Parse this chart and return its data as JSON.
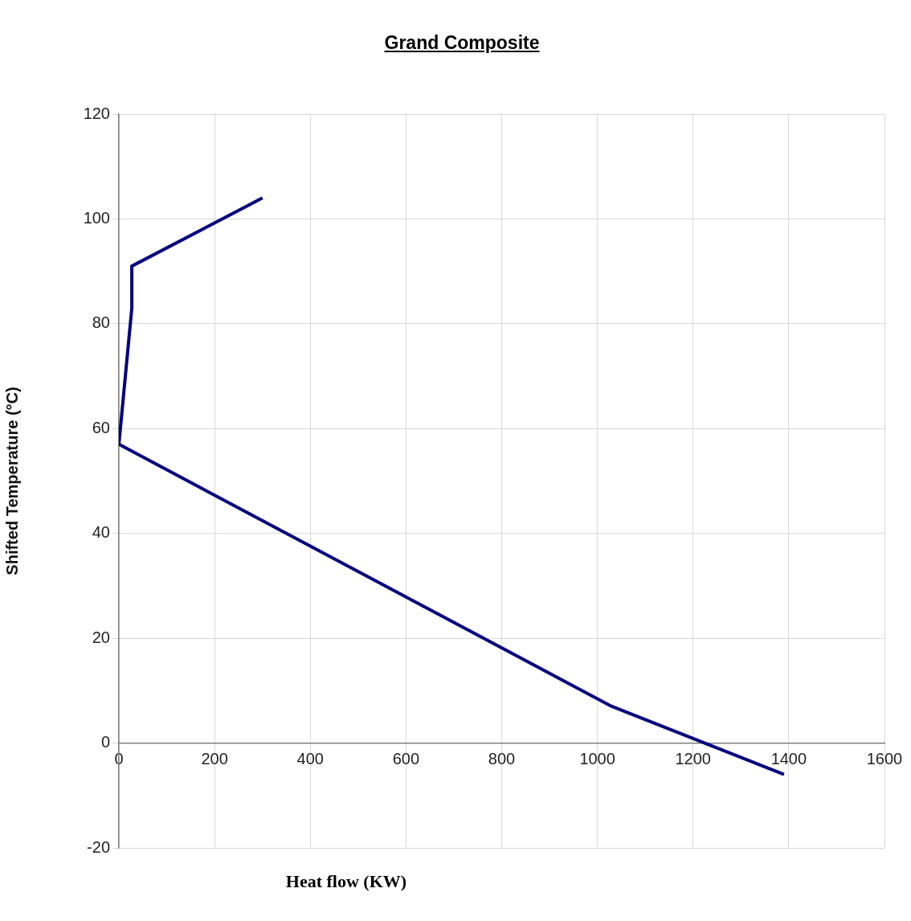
{
  "chart_data": {
    "type": "line",
    "title": "Grand Composite",
    "xlabel": "Heat flow (KW)",
    "ylabel": "Shifted Temperature (°C)",
    "x": [
      300,
      27,
      27,
      0,
      1030,
      1390
    ],
    "series": [
      {
        "color": "#000080",
        "values": [
          104,
          91,
          83,
          57,
          7,
          -6
        ]
      }
    ],
    "xlim": [
      0,
      1600
    ],
    "xticks": [
      0,
      200,
      400,
      600,
      800,
      1000,
      1200,
      1400,
      1600
    ],
    "ylim": [
      -20,
      120
    ],
    "yticks": [
      -20,
      0,
      20,
      40,
      60,
      80,
      100,
      120
    ],
    "grid": true,
    "legend": false,
    "marker": "none",
    "line_style": "solid"
  }
}
